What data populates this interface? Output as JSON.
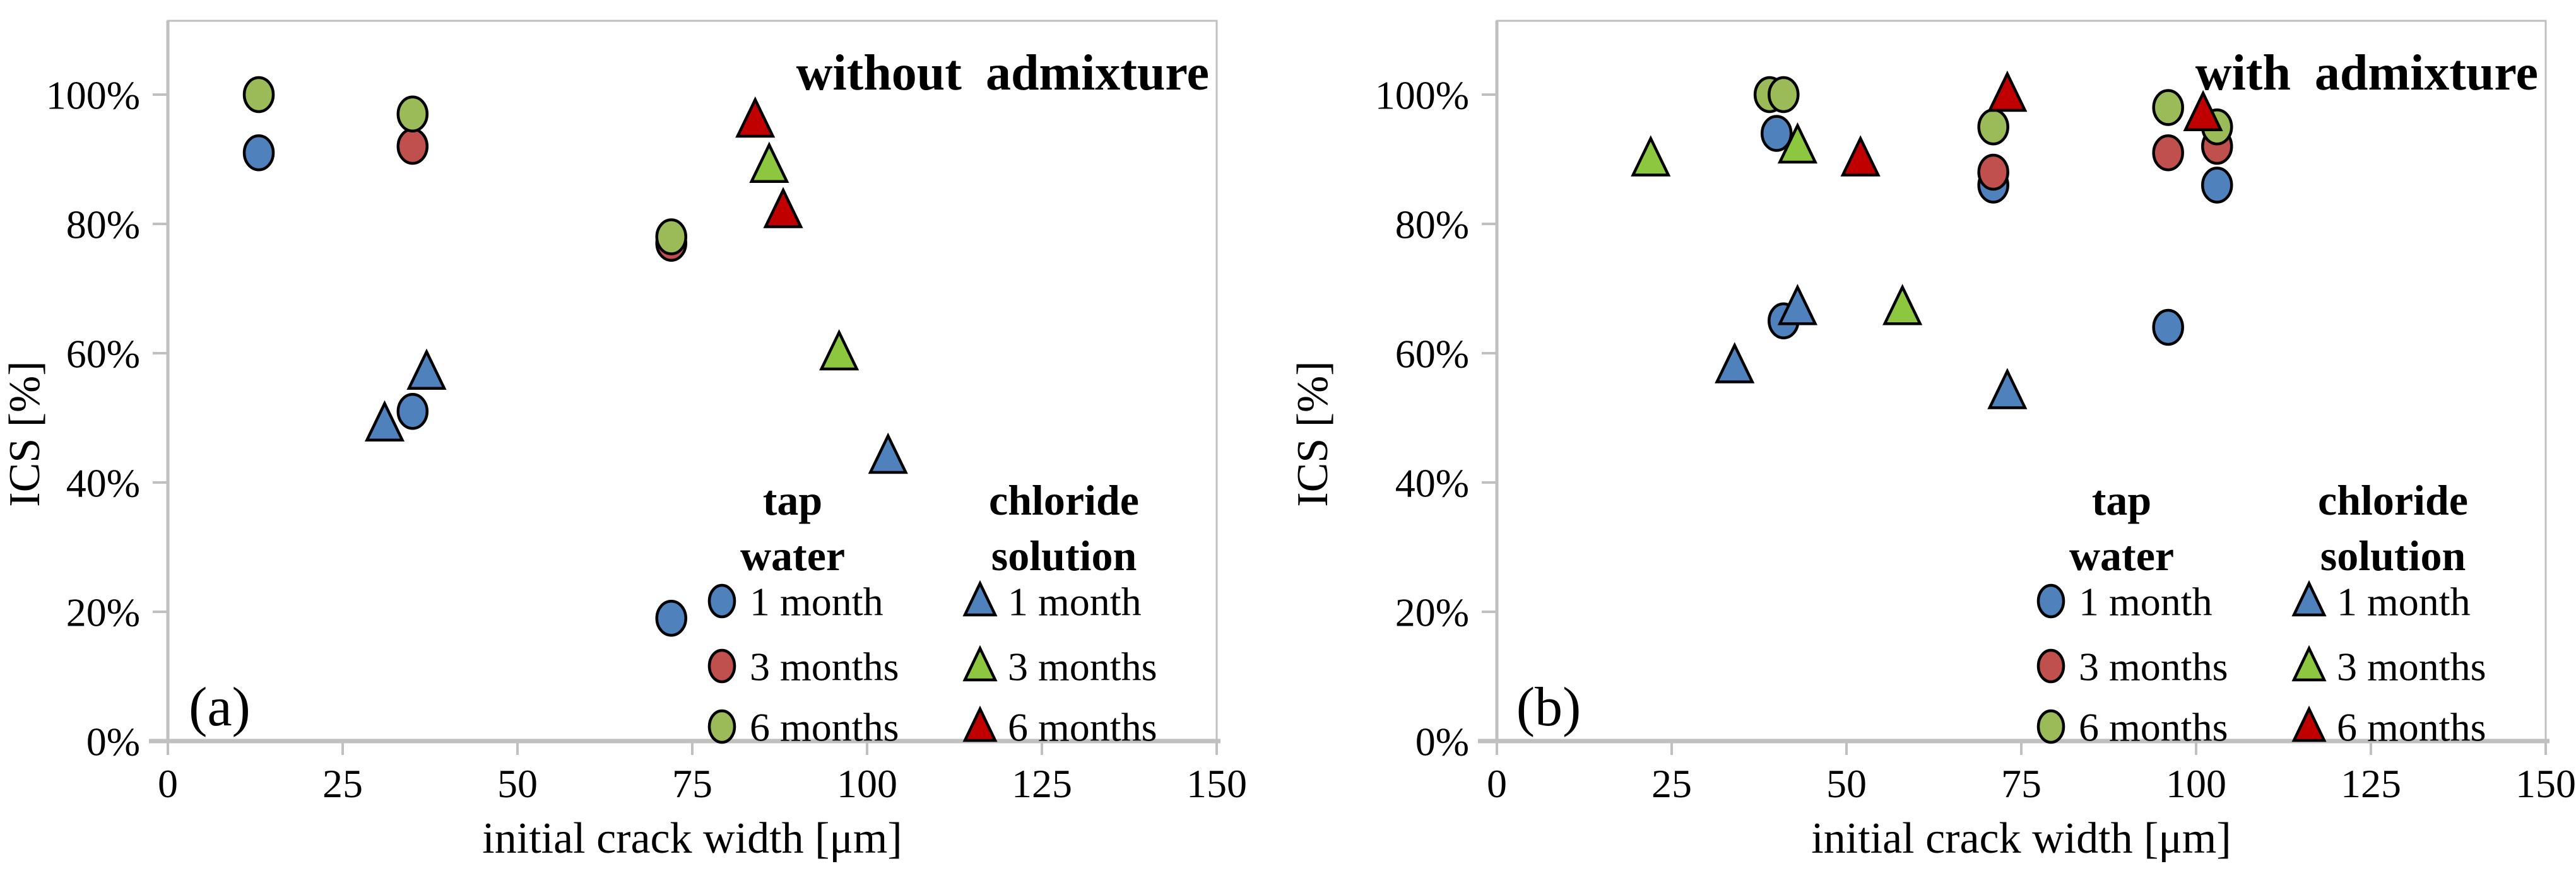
{
  "figure": {
    "background": "#ffffff",
    "axis_color": "#C0C0C0",
    "marker_outline_color": "#000000",
    "text_color": "#000000"
  },
  "chart_data": [
    {
      "type": "scatter",
      "panel_label": "(a)",
      "title": "without admixture",
      "xlabel": "initial crack width [μm]",
      "ylabel": "ICS [%]",
      "xlim": [
        0,
        150
      ],
      "ylim_percent": [
        0,
        100
      ],
      "x_ticks": [
        0,
        25,
        50,
        75,
        100,
        125,
        150
      ],
      "y_ticks": [
        0,
        20,
        40,
        60,
        80,
        100
      ],
      "y_tick_suffix": "%",
      "grid": false,
      "legend_position": "inside lower right",
      "legend": {
        "columns": [
          {
            "header_lines": [
              "tap",
              "water"
            ],
            "marker": "circle",
            "items": [
              {
                "label": "1 month",
                "color": "#4F81BD"
              },
              {
                "label": "3 months",
                "color": "#C0504D"
              },
              {
                "label": "6 months",
                "color": "#9BBB59"
              }
            ]
          },
          {
            "header_lines": [
              "chloride",
              "solution"
            ],
            "marker": "triangle",
            "items": [
              {
                "label": "1 month",
                "color": "#4F81BD"
              },
              {
                "label": "3 months",
                "color": "#8DC63F"
              },
              {
                "label": "6 months",
                "color": "#C00000"
              }
            ]
          }
        ]
      },
      "series": [
        {
          "name": "tap-water-1-month",
          "marker": "circle",
          "color": "#4F81BD",
          "points": [
            [
              13,
              91
            ],
            [
              35,
              51
            ],
            [
              72,
              19
            ]
          ]
        },
        {
          "name": "tap-water-3-months",
          "marker": "circle",
          "color": "#C0504D",
          "points": [
            [
              35,
              92
            ],
            [
              72,
              77
            ]
          ]
        },
        {
          "name": "tap-water-6-months",
          "marker": "circle",
          "color": "#9BBB59",
          "points": [
            [
              13,
              100
            ],
            [
              35,
              97
            ],
            [
              72,
              78
            ]
          ]
        },
        {
          "name": "chloride-1-month",
          "marker": "triangle",
          "color": "#4F81BD",
          "points": [
            [
              31,
              49
            ],
            [
              37,
              57
            ],
            [
              103,
              44
            ]
          ]
        },
        {
          "name": "chloride-3-months",
          "marker": "triangle",
          "color": "#8DC63F",
          "points": [
            [
              86,
              89
            ],
            [
              96,
              60
            ]
          ]
        },
        {
          "name": "chloride-6-months",
          "marker": "triangle",
          "color": "#C00000",
          "points": [
            [
              84,
              96
            ],
            [
              88,
              82
            ]
          ]
        }
      ]
    },
    {
      "type": "scatter",
      "panel_label": "(b)",
      "title": "with admixture",
      "xlabel": "initial crack width [μm]",
      "ylabel": "ICS [%]",
      "xlim": [
        0,
        150
      ],
      "ylim_percent": [
        0,
        100
      ],
      "x_ticks": [
        0,
        25,
        50,
        75,
        100,
        125,
        150
      ],
      "y_ticks": [
        0,
        20,
        40,
        60,
        80,
        100
      ],
      "y_tick_suffix": "%",
      "grid": false,
      "legend_position": "inside lower right",
      "legend": {
        "columns": [
          {
            "header_lines": [
              "tap",
              "water"
            ],
            "marker": "circle",
            "items": [
              {
                "label": "1 month",
                "color": "#4F81BD"
              },
              {
                "label": "3 months",
                "color": "#C0504D"
              },
              {
                "label": "6 months",
                "color": "#9BBB59"
              }
            ]
          },
          {
            "header_lines": [
              "chloride",
              "solution"
            ],
            "marker": "triangle",
            "items": [
              {
                "label": "1 month",
                "color": "#4F81BD"
              },
              {
                "label": "3 months",
                "color": "#8DC63F"
              },
              {
                "label": "6 months",
                "color": "#C00000"
              }
            ]
          }
        ]
      },
      "series": [
        {
          "name": "tap-water-1-month",
          "marker": "circle",
          "color": "#4F81BD",
          "points": [
            [
              40,
              94
            ],
            [
              41,
              65
            ],
            [
              71,
              86
            ],
            [
              96,
              64
            ],
            [
              103,
              86
            ]
          ]
        },
        {
          "name": "tap-water-3-months",
          "marker": "circle",
          "color": "#C0504D",
          "points": [
            [
              71,
              88
            ],
            [
              96,
              91
            ],
            [
              103,
              92
            ]
          ]
        },
        {
          "name": "tap-water-6-months",
          "marker": "circle",
          "color": "#9BBB59",
          "points": [
            [
              39,
              100
            ],
            [
              41,
              100
            ],
            [
              71,
              95
            ],
            [
              96,
              98
            ],
            [
              103,
              95
            ]
          ]
        },
        {
          "name": "chloride-1-month",
          "marker": "triangle",
          "color": "#4F81BD",
          "points": [
            [
              34,
              58
            ],
            [
              43,
              67
            ],
            [
              73,
              54
            ]
          ]
        },
        {
          "name": "chloride-3-months",
          "marker": "triangle",
          "color": "#8DC63F",
          "points": [
            [
              22,
              90
            ],
            [
              43,
              92
            ],
            [
              58,
              67
            ]
          ]
        },
        {
          "name": "chloride-6-months",
          "marker": "triangle",
          "color": "#C00000",
          "points": [
            [
              52,
              90
            ],
            [
              73,
              100
            ],
            [
              101,
              97
            ]
          ]
        }
      ]
    }
  ]
}
